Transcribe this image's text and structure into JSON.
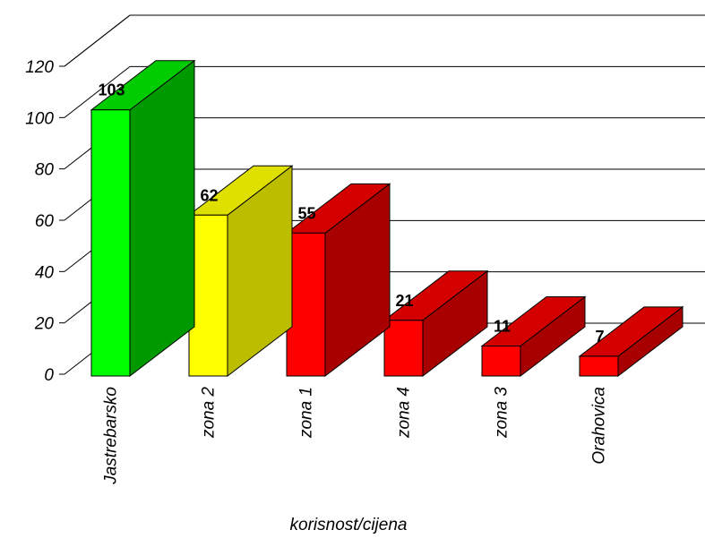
{
  "chart_data": {
    "type": "bar",
    "title": "",
    "xlabel": "korisnost/cijena",
    "ylabel": "",
    "ylim": [
      0,
      120
    ],
    "yticks": [
      "0",
      "20",
      "40",
      "60",
      "80",
      "100",
      "120"
    ],
    "categories": [
      "Jastrebarsko",
      "zona 2",
      "zona 1",
      "zona 4",
      "zona 3",
      "Orahovica"
    ],
    "values": [
      103,
      62,
      55,
      21,
      11,
      7
    ],
    "data_labels": [
      "103",
      "62",
      "55",
      "21",
      "11",
      "7"
    ],
    "bar_colors": [
      "#00ff00",
      "#ffff00",
      "#ff0000",
      "#ff0000",
      "#ff0000",
      "#ff0000"
    ],
    "bar_side_colors": [
      "#009900",
      "#bdbd00",
      "#a80000",
      "#a80000",
      "#a80000",
      "#a80000"
    ],
    "bar_top_colors": [
      "#00cc00",
      "#e0e000",
      "#d40000",
      "#d40000",
      "#d40000",
      "#d40000"
    ],
    "grid": true,
    "style": "3d"
  }
}
